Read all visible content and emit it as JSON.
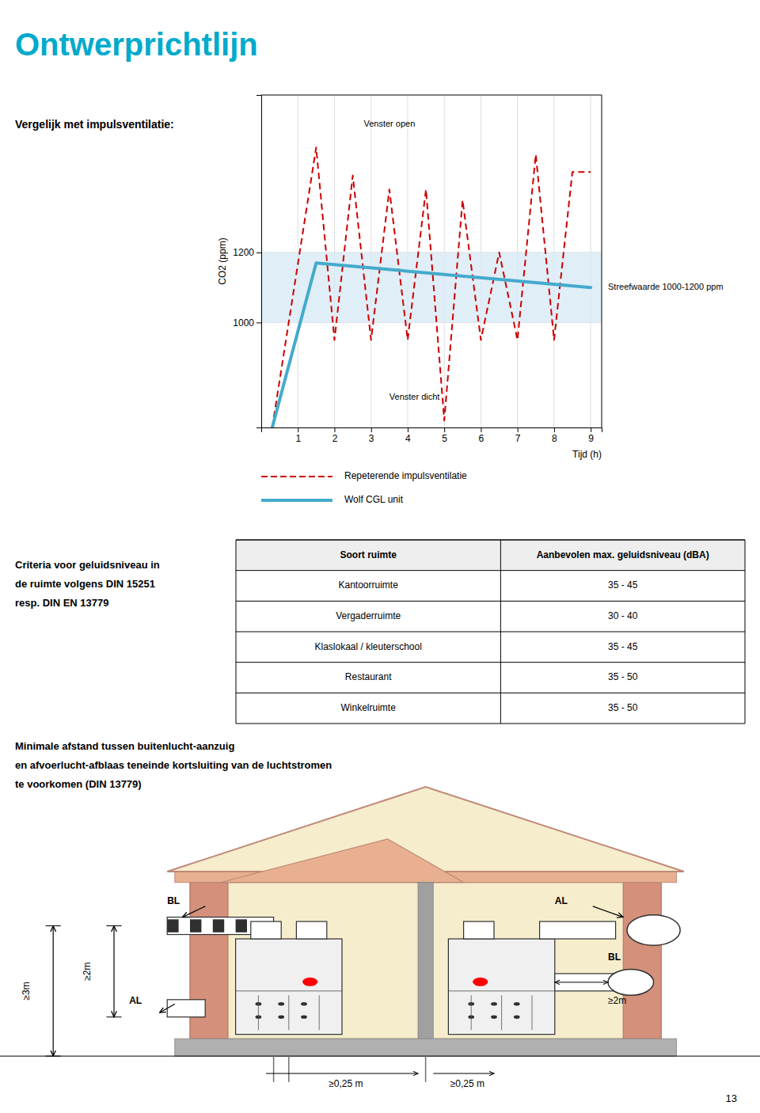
{
  "title": "Ontwerprichtlijn",
  "title_color": "#00AACC",
  "chart_data": {
    "type": "line",
    "title": "Vergelijk met impulsventilatie:",
    "x_label": "Tijd (h)",
    "y_label": "CO2 (ppm)",
    "xlim": [
      0,
      9.3
    ],
    "ylim": [
      700,
      1650
    ],
    "xticks": [
      1,
      2,
      3,
      4,
      5,
      6,
      7,
      8,
      9
    ],
    "yticks": [
      1000,
      1200
    ],
    "grid": true,
    "legend": "bottom",
    "series": [
      {
        "name": "Repeterende impulsventilatie",
        "color": "#CC0000",
        "line_style": "dashed",
        "x": [
          0.3,
          1.5,
          2.0,
          2.5,
          3.0,
          3.5,
          4.0,
          4.5,
          5.0,
          5.5,
          6.0,
          6.5,
          7.0,
          7.5,
          8.0,
          8.5,
          9.0
        ],
        "values": [
          700,
          1500,
          950,
          1420,
          950,
          1380,
          950,
          1380,
          720,
          1350,
          950,
          1200,
          950,
          1480,
          950,
          1430,
          1430
        ]
      },
      {
        "name": "Wolf CGL unit",
        "color": "#44AACC",
        "line_style": "solid",
        "x": [
          0.3,
          1.5,
          9.0
        ],
        "values": [
          700,
          1170,
          1100
        ]
      }
    ],
    "bands": [
      {
        "y0": 1000,
        "y1": 1200,
        "color": "#D8EAF5",
        "label": "Streefwaarde 1000-1200 ppm"
      }
    ],
    "annotations": [
      {
        "text": "Venster open",
        "x": 2.8,
        "y": 1560
      },
      {
        "text": "Venster dicht",
        "x": 3.5,
        "y": 780
      }
    ]
  },
  "criteria_text": [
    "Criteria voor geluidsniveau in",
    "de ruimte volgens DIN 15251",
    "resp. DIN EN 13779"
  ],
  "table": {
    "header": [
      "Soort ruimte",
      "Aanbevolen max. geluidsniveau (dBA)"
    ],
    "rows": [
      [
        "Kantoorruimte",
        "35 - 45"
      ],
      [
        "Vergaderruimte",
        "30 - 40"
      ],
      [
        "Klaslokaal / kleuterschool",
        "35 - 45"
      ],
      [
        "Restaurant",
        "35 - 50"
      ],
      [
        "Winkelruimte",
        "35 - 50"
      ]
    ]
  },
  "minimale_text": [
    "Minimale afstand tussen buitenlucht-aanzuig",
    "en afvoerlucht-afblaas teneinde kortsluiting van de luchtstromen",
    "te voorkomen (DIN 13779)"
  ],
  "diagram_labels": [
    "BL",
    "AL",
    "AL",
    "BL",
    "≥2m",
    "≥3m",
    "≥2m",
    "≥0,25 m",
    "≥0,25 m"
  ],
  "page_number": "13"
}
